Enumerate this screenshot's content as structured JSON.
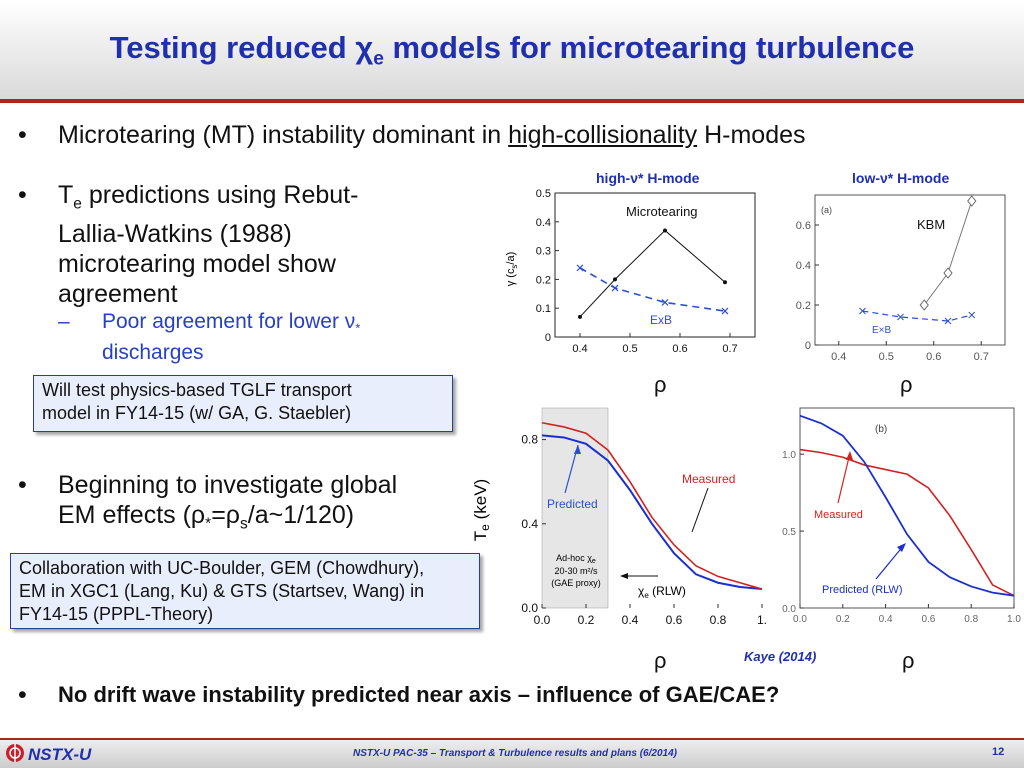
{
  "title": {
    "pre": "Testing reduced ",
    "chi": "χ",
    "sub": "e",
    "post": " models for microtearing turbulence"
  },
  "bullets": {
    "b1": {
      "text": "Microtearing (MT) instability dominant in ",
      "underline": "high-collisionality",
      "post": " H-modes"
    },
    "b2": {
      "t": "T",
      "sub": "e",
      "rest": " predictions using Rebut-",
      "l2": "Lallia-Watkins (1988)",
      "l3": "microtearing model show",
      "l4": "agreement"
    },
    "b2_sub": {
      "l1": "Poor agreement for lower ν",
      "nusub": "*",
      "l2": "discharges"
    },
    "b3": {
      "l1": "Beginning to investigate global",
      "l2_pre": "EM effects (ρ",
      "l2_s1": "*",
      "l2_eq": "=ρ",
      "l2_s2": "s",
      "l2_post": "/a~1/120)"
    },
    "b4": "No drift wave instability predicted near axis – influence of GAE/CAE?",
    "dot": "•",
    "dash": "–"
  },
  "boxes": {
    "tglf": {
      "l1": "Will test physics-based TGLF transport",
      "l2": "model in FY14-15 (w/ GA, G. Staebler)"
    },
    "collab": {
      "l1": "Collaboration with UC-Boulder, GEM (Chowdhury),",
      "l2": "EM in XGC1 (Lang, Ku) & GTS (Startsev, Wang) in",
      "l3": "FY14-15 (PPPL-Theory)"
    }
  },
  "plots": {
    "p1_title": "high-ν* H-mode",
    "p2_title": "low-ν* H-mode",
    "rho": "ρ",
    "kaye": "Kaye (2014)"
  },
  "chart_data": [
    {
      "type": "line",
      "title": "high-ν* H-mode",
      "xlabel": "ρ",
      "ylabel": "γ (cs/a)",
      "xlim": [
        0.35,
        0.75
      ],
      "ylim": [
        0,
        0.5
      ],
      "xticks": [
        "0.4",
        "0.5",
        "0.6",
        "0.7"
      ],
      "yticks": [
        "0",
        "0.1",
        "0.2",
        "0.3",
        "0.4",
        "0.5"
      ],
      "series": [
        {
          "name": "Microtearing",
          "x": [
            0.4,
            0.47,
            0.57,
            0.69
          ],
          "y": [
            0.07,
            0.2,
            0.37,
            0.19
          ],
          "color": "#111111"
        },
        {
          "name": "ExB",
          "x": [
            0.4,
            0.47,
            0.57,
            0.69
          ],
          "y": [
            0.24,
            0.17,
            0.12,
            0.09
          ],
          "color": "#2a4fd6"
        }
      ]
    },
    {
      "type": "line",
      "title": "low-ν* H-mode",
      "xlabel": "ρ",
      "xlim": [
        0.35,
        0.75
      ],
      "ylim": [
        0,
        0.75
      ],
      "xticks": [
        "0.4",
        "0.5",
        "0.6",
        "0.7"
      ],
      "yticks": [
        "0",
        "0.2",
        "0.4",
        "0.6"
      ],
      "panel_label": "(a)",
      "series": [
        {
          "name": "KBM",
          "x": [
            0.58,
            0.63,
            0.68
          ],
          "y": [
            0.2,
            0.36,
            0.72
          ],
          "color": "#666666"
        },
        {
          "name": "E×B",
          "x": [
            0.45,
            0.53,
            0.63,
            0.68
          ],
          "y": [
            0.17,
            0.14,
            0.12,
            0.15
          ],
          "color": "#2a4fd6"
        }
      ]
    },
    {
      "type": "line",
      "xlabel": "ρ",
      "ylabel": "Te (keV)",
      "xlim": [
        0,
        1
      ],
      "ylim": [
        0,
        0.95
      ],
      "xticks": [
        "0.0",
        "0.2",
        "0.4",
        "0.6",
        "0.8",
        "1."
      ],
      "yticks": [
        "0.0",
        "0.4",
        "0.8"
      ],
      "annotations": [
        "Predicted",
        "Measured",
        "Ad-hoc χe 20-30 m²/s (GAE proxy)",
        "χe (RLW)"
      ],
      "series": [
        {
          "name": "Predicted",
          "x": [
            0,
            0.1,
            0.2,
            0.3,
            0.4,
            0.5,
            0.6,
            0.7,
            0.8,
            0.9,
            1.0
          ],
          "y": [
            0.82,
            0.81,
            0.78,
            0.7,
            0.56,
            0.4,
            0.26,
            0.16,
            0.12,
            0.1,
            0.09
          ],
          "color": "#1a2fd0"
        },
        {
          "name": "Measured",
          "x": [
            0,
            0.1,
            0.2,
            0.3,
            0.4,
            0.5,
            0.6,
            0.7,
            0.8,
            0.9,
            1.0
          ],
          "y": [
            0.88,
            0.86,
            0.83,
            0.75,
            0.6,
            0.43,
            0.3,
            0.2,
            0.15,
            0.12,
            0.09
          ],
          "color": "#d42020"
        }
      ]
    },
    {
      "type": "line",
      "panel_label": "(b)",
      "xlabel": "ρ",
      "xlim": [
        0,
        1
      ],
      "ylim": [
        0,
        1.3
      ],
      "xticks": [
        "0.0",
        "0.2",
        "0.4",
        "0.6",
        "0.8",
        "1.0"
      ],
      "yticks": [
        "0.0",
        "0.5",
        "1.0"
      ],
      "series": [
        {
          "name": "Measured",
          "x": [
            0,
            0.1,
            0.2,
            0.3,
            0.4,
            0.5,
            0.6,
            0.7,
            0.8,
            0.9,
            1.0
          ],
          "y": [
            1.03,
            1.01,
            0.98,
            0.93,
            0.9,
            0.87,
            0.78,
            0.6,
            0.38,
            0.15,
            0.08
          ],
          "color": "#d42020"
        },
        {
          "name": "Predicted (RLW)",
          "x": [
            0,
            0.1,
            0.2,
            0.3,
            0.4,
            0.5,
            0.6,
            0.7,
            0.8,
            0.9,
            1.0
          ],
          "y": [
            1.25,
            1.2,
            1.12,
            0.95,
            0.72,
            0.48,
            0.3,
            0.2,
            0.14,
            0.1,
            0.08
          ],
          "color": "#1a2fd0"
        }
      ]
    }
  ],
  "footer": {
    "logo": "NSTX-U",
    "text": "NSTX-U PAC-35 – Transport & Turbulence results and plans (6/2014)",
    "page": "12"
  }
}
